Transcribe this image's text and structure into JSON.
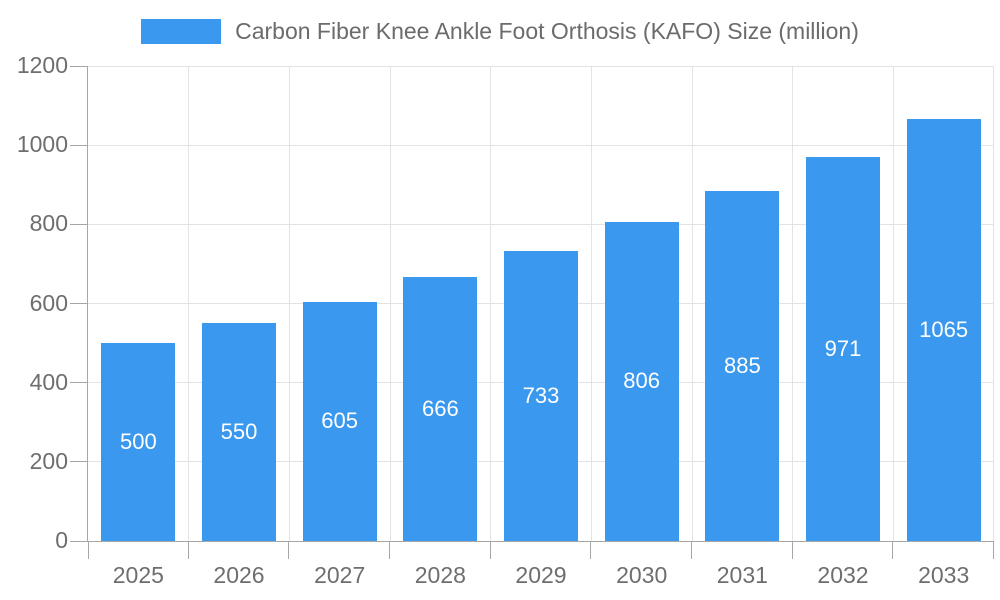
{
  "colors": {
    "bar": "#3a99ee",
    "grid": "#e3e3e3",
    "axis": "#a6a6a6",
    "tick_label": "#6e6e6e",
    "value_label": "#ffffff",
    "legend_label": "#6b6b6b"
  },
  "legend": {
    "position": "top-center"
  },
  "chart_data": {
    "type": "bar",
    "title": "Carbon Fiber Knee Ankle Foot Orthosis (KAFO) Size (million)",
    "series_name": "Carbon Fiber Knee Ankle Foot Orthosis (KAFO) Size (million)",
    "categories": [
      "2025",
      "2026",
      "2027",
      "2028",
      "2029",
      "2030",
      "2031",
      "2032",
      "2033"
    ],
    "values": [
      500,
      550,
      605,
      666,
      733,
      806,
      885,
      971,
      1065
    ],
    "xlabel": "",
    "ylabel": "",
    "ylim": [
      0,
      1200
    ],
    "yticks": [
      0,
      200,
      400,
      600,
      800,
      1000,
      1200
    ],
    "grid": true,
    "legend_position": "top",
    "value_label_position": "inside-center"
  }
}
